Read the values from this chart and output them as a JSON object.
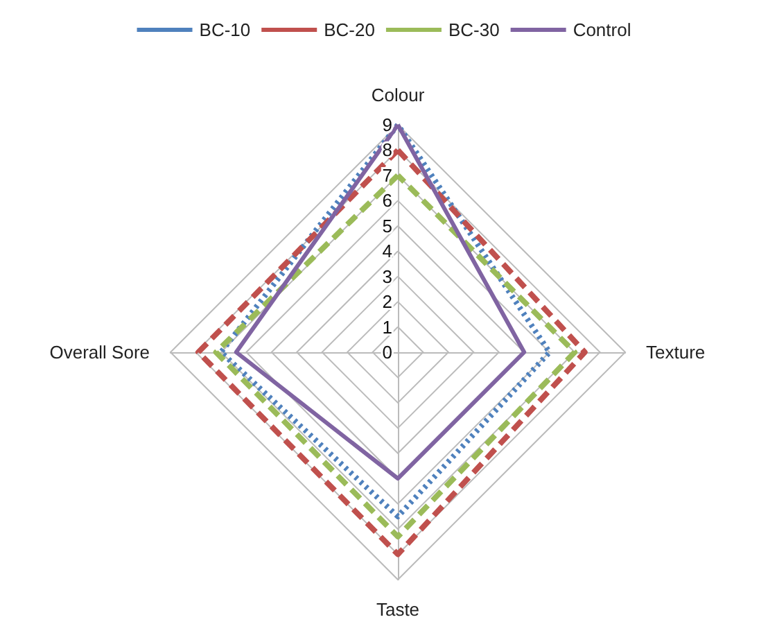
{
  "chart_data": {
    "type": "radar",
    "categories": [
      "Colour",
      "Texture",
      "Taste",
      "Overall Sore"
    ],
    "ylim": [
      0,
      9
    ],
    "yticks": [
      0,
      1,
      2,
      3,
      4,
      5,
      6,
      7,
      8,
      9
    ],
    "legend": "top",
    "marker": "none",
    "grid": true,
    "series": [
      {
        "name": "BC-10",
        "color": "#4f81bd",
        "line_style": "dotted",
        "values": [
          9,
          6,
          6.5,
          7
        ]
      },
      {
        "name": "BC-20",
        "color": "#c0504d",
        "line_style": "dashed",
        "values": [
          8,
          7.4,
          8,
          7.9
        ]
      },
      {
        "name": "BC-30",
        "color": "#9bbb59",
        "line_style": "dashed",
        "values": [
          7,
          7,
          7.3,
          7.2
        ]
      },
      {
        "name": "Control",
        "color": "#8064a2",
        "line_style": "solid",
        "values": [
          9,
          5,
          5,
          6.4
        ]
      }
    ]
  }
}
